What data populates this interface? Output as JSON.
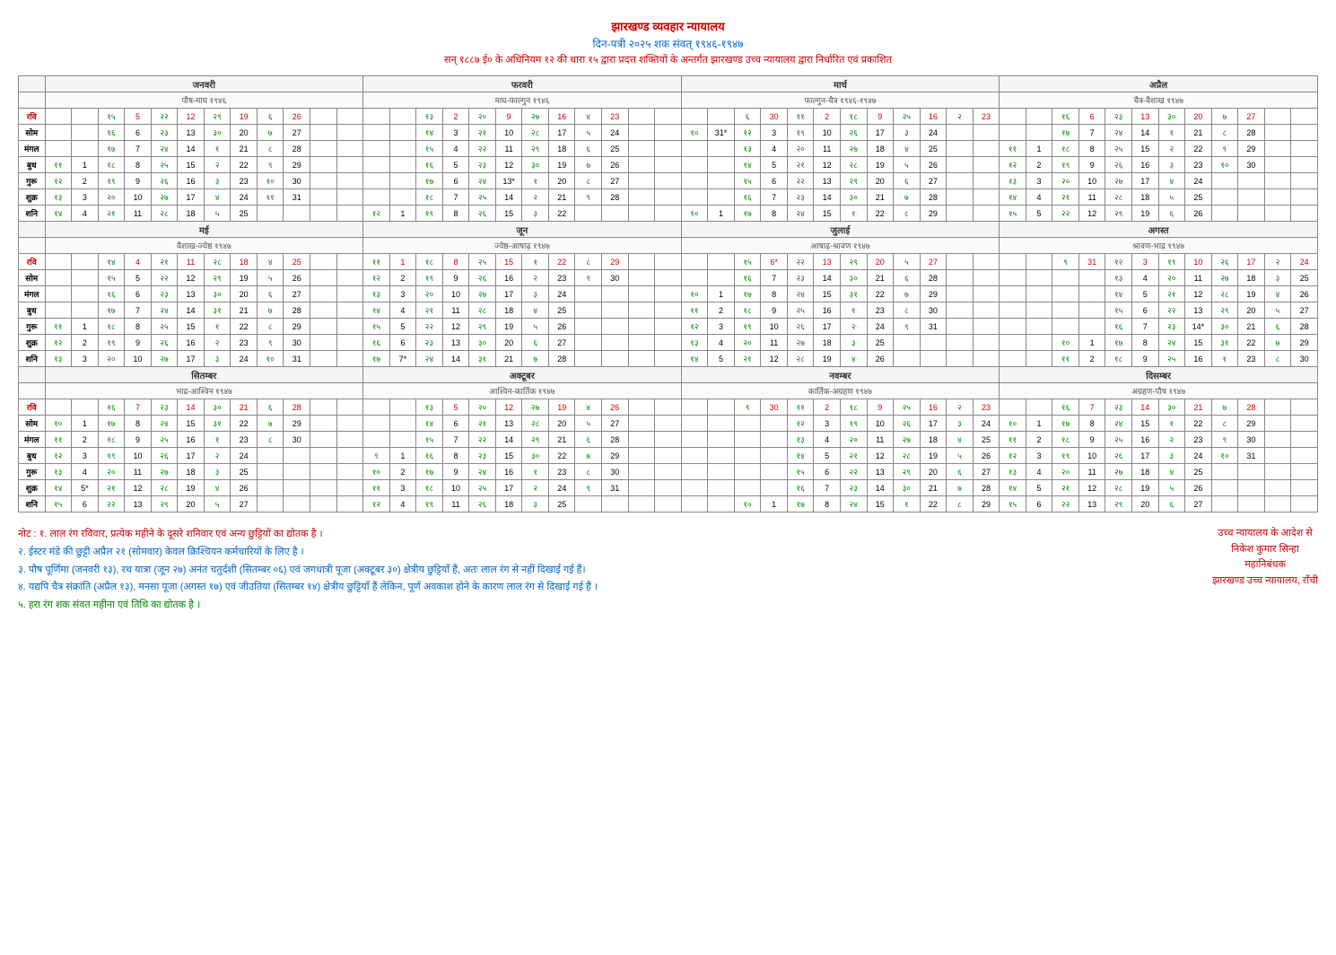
{
  "header": {
    "title": "झारखण्ड व्यवहार न्यायालय",
    "subtitle1": "दिन-पत्री २०२५ शक संवत् १९४६-१९४७",
    "subtitle2": "सन् १८८७ ई० के अधिनियम १२ की धारा १५ द्वारा प्रदत्त शक्तियों के अन्तर्गत झारखण्ड उच्च न्यायालय द्वारा निर्धारित एवं प्रकाशित"
  },
  "days": [
    "रवि",
    "सोम",
    "मंगल",
    "बुध",
    "गुरू",
    "शुक्र",
    "शनि"
  ],
  "months_row1": {
    "names": [
      "जनवरी",
      "फरवरी",
      "मार्च",
      "अप्रैल"
    ],
    "subnames": [
      "पौष-माघ १९४६",
      "माघ-फाल्गुन १९४६",
      "फाल्गुन-चैत्र १९४६-१९४७",
      "चैत्र-वैशाख १९४७"
    ]
  },
  "months_row2": {
    "names": [
      "मई",
      "जून",
      "जुलाई",
      "अगस्त"
    ],
    "subnames": [
      "वैशाख-ज्येष्ठ १९४७",
      "ज्येष्ठ-आषाढ़ १९४७",
      "आषाढ़-श्रावण १९४७",
      "श्रावण-भाद्र १९४७"
    ]
  },
  "months_row3": {
    "names": [
      "सितम्बर",
      "अक्टूबर",
      "नवम्बर",
      "दिसम्बर"
    ],
    "subnames": [
      "भाद्र-आश्विन १९४७",
      "आश्विन-कार्तिक १९४७",
      "कार्तिक-अग्रहण १९४७",
      "अग्रहण-पौष १९४७"
    ]
  },
  "jan": [
    [
      [
        "",
        "",
        "१५",
        "5",
        "२२",
        "12",
        "२९",
        "19",
        "६",
        "26"
      ],
      "red"
    ],
    [
      [
        "",
        "",
        "१६",
        "6",
        "२३",
        "13",
        "३०",
        "20",
        "७",
        "27"
      ],
      ""
    ],
    [
      [
        "",
        "",
        "१७",
        "7",
        "२४",
        "14",
        "१",
        "21",
        "८",
        "28"
      ],
      ""
    ],
    [
      [
        "११",
        "1",
        "१८",
        "8",
        "२५",
        "15",
        "२",
        "22",
        "९",
        "29"
      ],
      ""
    ],
    [
      [
        "१२",
        "2",
        "१९",
        "9",
        "२६",
        "16",
        "३",
        "23",
        "१०",
        "30"
      ],
      ""
    ],
    [
      [
        "१३",
        "3",
        "२०",
        "10",
        "२७",
        "17",
        "४",
        "24",
        "११",
        "31"
      ],
      ""
    ],
    [
      [
        "१४",
        "4",
        "२१",
        "11",
        "२८",
        "18",
        "५",
        "25",
        "",
        ""
      ],
      ""
    ]
  ],
  "feb": [
    [
      [
        "",
        "",
        "१३",
        "2",
        "२०",
        "9",
        "२७",
        "16",
        "४",
        "23"
      ],
      "red"
    ],
    [
      [
        "",
        "",
        "१४",
        "3",
        "२१",
        "10",
        "२८",
        "17",
        "५",
        "24"
      ],
      ""
    ],
    [
      [
        "",
        "",
        "१५",
        "4",
        "२२",
        "11",
        "२९",
        "18",
        "६",
        "25"
      ],
      ""
    ],
    [
      [
        "",
        "",
        "१६",
        "5",
        "२३",
        "12",
        "३०",
        "19",
        "७",
        "26"
      ],
      ""
    ],
    [
      [
        "",
        "",
        "१७",
        "6",
        "२४",
        "13*",
        "१",
        "20",
        "८",
        "27"
      ],
      ""
    ],
    [
      [
        "",
        "",
        "१८",
        "7",
        "२५",
        "14",
        "२",
        "21",
        "९",
        "28"
      ],
      ""
    ],
    [
      [
        "१२",
        "1",
        "१९",
        "8",
        "२६",
        "15",
        "३",
        "22",
        "",
        ""
      ],
      ""
    ]
  ],
  "mar": [
    [
      [
        "",
        "",
        "६",
        "30",
        "११",
        "2",
        "१८",
        "9",
        "२५",
        "16",
        "२",
        "23"
      ],
      "red"
    ],
    [
      [
        "१०",
        "31*",
        "१२",
        "3",
        "१९",
        "10",
        "२६",
        "17",
        "३",
        "24"
      ],
      ""
    ],
    [
      [
        "",
        "",
        "१३",
        "4",
        "२०",
        "11",
        "२७",
        "18",
        "४",
        "25"
      ],
      ""
    ],
    [
      [
        "",
        "",
        "१४",
        "5",
        "२१",
        "12",
        "२८",
        "19",
        "५",
        "26"
      ],
      ""
    ],
    [
      [
        "",
        "",
        "१५",
        "6",
        "२२",
        "13",
        "२९",
        "20",
        "६",
        "27"
      ],
      ""
    ],
    [
      [
        "",
        "",
        "१६",
        "7",
        "२३",
        "14",
        "३०",
        "21",
        "७",
        "28"
      ],
      ""
    ],
    [
      [
        "१०",
        "1",
        "१७",
        "8",
        "२४",
        "15",
        "१",
        "22",
        "८",
        "29"
      ],
      ""
    ]
  ],
  "apr": [
    [
      [
        "",
        "",
        "१६",
        "6",
        "२३",
        "13",
        "३०",
        "20",
        "७",
        "27"
      ],
      "red"
    ],
    [
      [
        "",
        "",
        "१७",
        "7",
        "२४",
        "14",
        "१",
        "21",
        "८",
        "28"
      ],
      ""
    ],
    [
      [
        "११",
        "1",
        "१८",
        "8",
        "२५",
        "15",
        "२",
        "22",
        "९",
        "29"
      ],
      ""
    ],
    [
      [
        "१२",
        "2",
        "१९",
        "9",
        "२६",
        "16",
        "३",
        "23",
        "१०",
        "30"
      ],
      ""
    ],
    [
      [
        "१३",
        "3",
        "२०",
        "10",
        "२७",
        "17",
        "४",
        "24",
        "",
        ""
      ],
      ""
    ],
    [
      [
        "१४",
        "4",
        "२१",
        "11",
        "२८",
        "18",
        "५",
        "25",
        "",
        ""
      ],
      ""
    ],
    [
      [
        "१५",
        "5",
        "२२",
        "12",
        "२९",
        "19",
        "६",
        "26",
        "",
        ""
      ],
      ""
    ]
  ],
  "may": [
    [
      [
        "",
        "",
        "१४",
        "4",
        "२१",
        "11",
        "२८",
        "18",
        "४",
        "25"
      ],
      "red"
    ],
    [
      [
        "",
        "",
        "१५",
        "5",
        "२२",
        "12",
        "२९",
        "19",
        "५",
        "26"
      ],
      ""
    ],
    [
      [
        "",
        "",
        "१६",
        "6",
        "२३",
        "13",
        "३०",
        "20",
        "६",
        "27"
      ],
      ""
    ],
    [
      [
        "",
        "",
        "१७",
        "7",
        "२४",
        "14",
        "३१",
        "21",
        "७",
        "28"
      ],
      ""
    ],
    [
      [
        "११",
        "1",
        "१८",
        "8",
        "२५",
        "15",
        "१",
        "22",
        "८",
        "29"
      ],
      ""
    ],
    [
      [
        "१२",
        "2",
        "१९",
        "9",
        "२६",
        "16",
        "२",
        "23",
        "९",
        "30"
      ],
      ""
    ],
    [
      [
        "१३",
        "3",
        "२०",
        "10",
        "२७",
        "17",
        "३",
        "24",
        "१०",
        "31"
      ],
      ""
    ]
  ],
  "jun": [
    [
      [
        "११",
        "1",
        "१८",
        "8",
        "२५",
        "15",
        "१",
        "22",
        "८",
        "29"
      ],
      "red"
    ],
    [
      [
        "१२",
        "2",
        "१९",
        "9",
        "२६",
        "16",
        "२",
        "23",
        "९",
        "30"
      ],
      ""
    ],
    [
      [
        "१३",
        "3",
        "२०",
        "10",
        "२७",
        "17",
        "३",
        "24",
        "",
        ""
      ],
      ""
    ],
    [
      [
        "१४",
        "4",
        "२१",
        "11",
        "२८",
        "18",
        "४",
        "25",
        "",
        ""
      ],
      ""
    ],
    [
      [
        "१५",
        "5",
        "२२",
        "12",
        "२९",
        "19",
        "५",
        "26",
        "",
        ""
      ],
      ""
    ],
    [
      [
        "१६",
        "6",
        "२३",
        "13",
        "३०",
        "20",
        "६",
        "27",
        "",
        ""
      ],
      ""
    ],
    [
      [
        "१७",
        "7*",
        "२४",
        "14",
        "३१",
        "21",
        "७",
        "28",
        "",
        ""
      ],
      ""
    ]
  ],
  "jul": [
    [
      [
        "",
        "",
        "१५",
        "6*",
        "२२",
        "13",
        "२९",
        "20",
        "५",
        "27"
      ],
      "red"
    ],
    [
      [
        "",
        "",
        "१६",
        "7",
        "२३",
        "14",
        "३०",
        "21",
        "६",
        "28"
      ],
      ""
    ],
    [
      [
        "१०",
        "1",
        "१७",
        "8",
        "२४",
        "15",
        "३१",
        "22",
        "७",
        "29"
      ],
      ""
    ],
    [
      [
        "११",
        "2",
        "१८",
        "9",
        "२५",
        "16",
        "१",
        "23",
        "८",
        "30"
      ],
      ""
    ],
    [
      [
        "१२",
        "3",
        "१९",
        "10",
        "२६",
        "17",
        "२",
        "24",
        "९",
        "31"
      ],
      ""
    ],
    [
      [
        "१३",
        "4",
        "२०",
        "11",
        "२७",
        "18",
        "३",
        "25",
        "",
        ""
      ],
      ""
    ],
    [
      [
        "१४",
        "5",
        "२१",
        "12",
        "२८",
        "19",
        "४",
        "26",
        "",
        ""
      ],
      ""
    ]
  ],
  "aug": [
    [
      [
        "",
        "",
        "९",
        "31",
        "१२",
        "3",
        "१९",
        "10",
        "२६",
        "17",
        "२",
        "24"
      ],
      "red"
    ],
    [
      [
        "",
        "",
        "",
        "",
        "१३",
        "4",
        "२०",
        "11",
        "२७",
        "18",
        "३",
        "25"
      ],
      ""
    ],
    [
      [
        "",
        "",
        "",
        "",
        "१४",
        "5",
        "२१",
        "12",
        "२८",
        "19",
        "४",
        "26"
      ],
      ""
    ],
    [
      [
        "",
        "",
        "",
        "",
        "१५",
        "6",
        "२२",
        "13",
        "२९",
        "20",
        "५",
        "27"
      ],
      ""
    ],
    [
      [
        "",
        "",
        "",
        "",
        "१६",
        "7",
        "२३",
        "14*",
        "३०",
        "21",
        "६",
        "28"
      ],
      ""
    ],
    [
      [
        "",
        "",
        "१०",
        "1",
        "१७",
        "8",
        "२४",
        "15",
        "३१",
        "22",
        "७",
        "29"
      ],
      ""
    ],
    [
      [
        "",
        "",
        "११",
        "2",
        "१८",
        "9",
        "२५",
        "16",
        "१",
        "23",
        "८",
        "30"
      ],
      ""
    ]
  ],
  "sep": [
    [
      [
        "",
        "",
        "१६",
        "7",
        "२३",
        "14",
        "३०",
        "21",
        "६",
        "28"
      ],
      "red"
    ],
    [
      [
        "१०",
        "1",
        "१७",
        "8",
        "२४",
        "15",
        "३१",
        "22",
        "७",
        "29"
      ],
      ""
    ],
    [
      [
        "११",
        "2",
        "१८",
        "9",
        "२५",
        "16",
        "१",
        "23",
        "८",
        "30"
      ],
      ""
    ],
    [
      [
        "१२",
        "3",
        "१९",
        "10",
        "२६",
        "17",
        "२",
        "24",
        "",
        ""
      ],
      ""
    ],
    [
      [
        "१३",
        "4",
        "२०",
        "11",
        "२७",
        "18",
        "३",
        "25",
        "",
        ""
      ],
      ""
    ],
    [
      [
        "१४",
        "5*",
        "२१",
        "12",
        "२८",
        "19",
        "४",
        "26",
        "",
        ""
      ],
      ""
    ],
    [
      [
        "१५",
        "6",
        "२२",
        "13",
        "२९",
        "20",
        "५",
        "27",
        "",
        ""
      ],
      ""
    ]
  ],
  "oct": [
    [
      [
        "",
        "",
        "१३",
        "5",
        "२०",
        "12",
        "२७",
        "19",
        "४",
        "26"
      ],
      "red"
    ],
    [
      [
        "",
        "",
        "१४",
        "6",
        "२१",
        "13",
        "२८",
        "20",
        "५",
        "27"
      ],
      ""
    ],
    [
      [
        "",
        "",
        "१५",
        "7",
        "२२",
        "14",
        "२९",
        "21",
        "६",
        "28"
      ],
      ""
    ],
    [
      [
        "९",
        "1",
        "१६",
        "8",
        "२३",
        "15",
        "३०",
        "22",
        "७",
        "29"
      ],
      ""
    ],
    [
      [
        "१०",
        "2",
        "१७",
        "9",
        "२४",
        "16",
        "१",
        "23",
        "८",
        "30"
      ],
      ""
    ],
    [
      [
        "११",
        "3",
        "१८",
        "10",
        "२५",
        "17",
        "२",
        "24",
        "९",
        "31"
      ],
      ""
    ],
    [
      [
        "१२",
        "4",
        "१९",
        "11",
        "२६",
        "18",
        "३",
        "25",
        "",
        ""
      ],
      ""
    ]
  ],
  "nov": [
    [
      [
        "",
        "",
        "९",
        "30",
        "११",
        "2",
        "१८",
        "9",
        "२५",
        "16",
        "२",
        "23"
      ],
      "red"
    ],
    [
      [
        "",
        "",
        "",
        "",
        "१२",
        "3",
        "१९",
        "10",
        "२६",
        "17",
        "३",
        "24"
      ],
      ""
    ],
    [
      [
        "",
        "",
        "",
        "",
        "१३",
        "4",
        "२०",
        "11",
        "२७",
        "18",
        "४",
        "25"
      ],
      ""
    ],
    [
      [
        "",
        "",
        "",
        "",
        "१४",
        "5",
        "२१",
        "12",
        "२८",
        "19",
        "५",
        "26"
      ],
      ""
    ],
    [
      [
        "",
        "",
        "",
        "",
        "१५",
        "6",
        "२२",
        "13",
        "२९",
        "20",
        "६",
        "27"
      ],
      ""
    ],
    [
      [
        "",
        "",
        "",
        "",
        "१६",
        "7",
        "२३",
        "14",
        "३०",
        "21",
        "७",
        "28"
      ],
      ""
    ],
    [
      [
        "",
        "",
        "१०",
        "1",
        "१७",
        "8",
        "२४",
        "15",
        "१",
        "22",
        "८",
        "29"
      ],
      ""
    ]
  ],
  "dec": [
    [
      [
        "",
        "",
        "१६",
        "7",
        "२३",
        "14",
        "३०",
        "21",
        "७",
        "28"
      ],
      "red"
    ],
    [
      [
        "१०",
        "1",
        "१७",
        "8",
        "२४",
        "15",
        "१",
        "22",
        "८",
        "29"
      ],
      ""
    ],
    [
      [
        "११",
        "2",
        "१८",
        "9",
        "२५",
        "16",
        "२",
        "23",
        "९",
        "30"
      ],
      ""
    ],
    [
      [
        "१२",
        "3",
        "१९",
        "10",
        "२६",
        "17",
        "३",
        "24",
        "१०",
        "31"
      ],
      ""
    ],
    [
      [
        "१३",
        "4",
        "२०",
        "11",
        "२७",
        "18",
        "४",
        "25",
        "",
        ""
      ],
      ""
    ],
    [
      [
        "१४",
        "5",
        "२१",
        "12",
        "२८",
        "19",
        "५",
        "26",
        "",
        ""
      ],
      ""
    ],
    [
      [
        "१५",
        "6",
        "२२",
        "13",
        "२९",
        "20",
        "६",
        "27",
        "",
        ""
      ],
      ""
    ]
  ],
  "notes": {
    "label": "नोट :",
    "items": [
      "१. लाल रंग रविवार, प्रत्येक महीने के दूसरे शनिवार एवं अन्य छुट्टियों का द्योतक है ।",
      "२. ईस्टर मंडे की छुट्टी अप्रैल २१ (सोमवार) केवल क्रिश्चियन कर्मचारियों के लिए है ।",
      "३. पौष पूर्णिमा (जनवरी १३), रथ यात्रा (जून २७) अनंत चतुर्दशी (सितम्बर ०६) एवं जगधात्री पूजा (अक्टूबर ३०) क्षेत्रीय छुट्टियाँ हैं, अतः लाल रंग से नहीं दिखाई गई हैं।",
      "४. यद्यपि चैत्र संक्रांति (अप्रैल १३), मनसा पूजा (अगस्त १७) एवं जीउतिया (सितम्बर १४) क्षेत्रीय छुट्टियाँ हैं लेकिन, पूर्ण अवकाश होने के कारण लाल रंग से दिखाई गई हैं ।",
      "५. हरा रंग शक संवत महीना एवं तिथि का द्योतक है ।"
    ]
  },
  "footer": {
    "line1": "उच्च न्यायालय के आदेश से",
    "line2": "निकेश कुमार सिन्हा",
    "line3": "महानिबंधक",
    "line4": "झारखण्ड उच्च न्यायालय, राँची"
  },
  "colors": {
    "red": "#cc0000",
    "green": "#008800",
    "blue": "#0066cc",
    "border": "#888888"
  }
}
